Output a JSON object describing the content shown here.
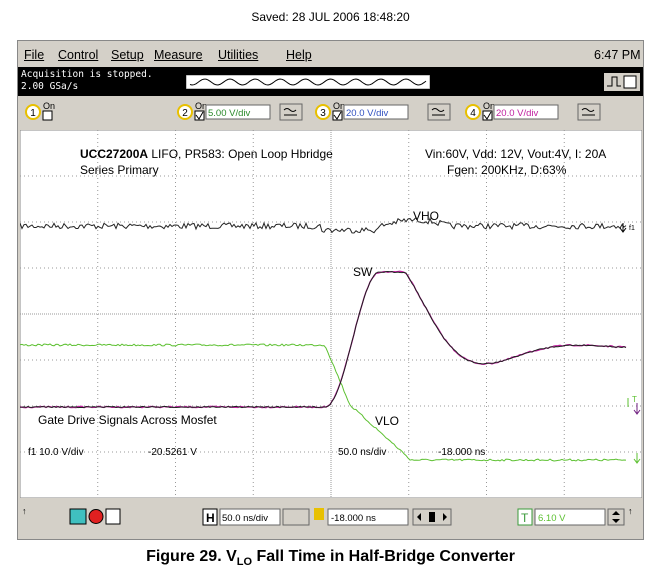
{
  "header": {
    "saved": "Saved:  28 JUL 2006  18:48:20"
  },
  "menu": {
    "items": [
      "File",
      "Control",
      "Setup",
      "Measure",
      "Utilities",
      "Help"
    ],
    "clock": "6:47 PM"
  },
  "status": {
    "state": "Acquisition is stopped.",
    "rate": "2.00 GSa/s"
  },
  "channels": [
    {
      "number": "1",
      "on": "On"
    },
    {
      "number": "2",
      "on": "On",
      "scale": "5.00 V/div"
    },
    {
      "number": "3",
      "on": "On",
      "scale": "20.0 V/div"
    },
    {
      "number": "4",
      "on": "On",
      "scale": "20.0 V/div"
    }
  ],
  "screen": {
    "title_bold": "UCC27200A",
    "title_rest": " LIFO, PR583: Open Loop Hbridge",
    "subtitle": "Series Primary",
    "conditions": "Vin:60V, Vdd: 12V, Vout:4V, I: 20A",
    "generator": "Fgen: 200KHz, D:63%",
    "labels": [
      "VHO",
      "SW",
      "VLO"
    ],
    "note": "Gate Drive Signals Across Mosfet",
    "f1_scale": "f1 10.0 V/div",
    "f1_offset": "-20.5261 V",
    "timebase": "50.0 ns/div",
    "delay": "-18.000 ns",
    "marker_f1": "f1",
    "marker_t": "T"
  },
  "toolbar": {
    "h": "H",
    "timebase": "50.0 ns/div",
    "delay": "-18.000 ns",
    "t": "T",
    "level": "6.10 V"
  },
  "caption": {
    "prefix": "Figure 29. V",
    "subscript": "LO",
    "suffix": " Fall Time in Half-Bridge Converter"
  }
}
